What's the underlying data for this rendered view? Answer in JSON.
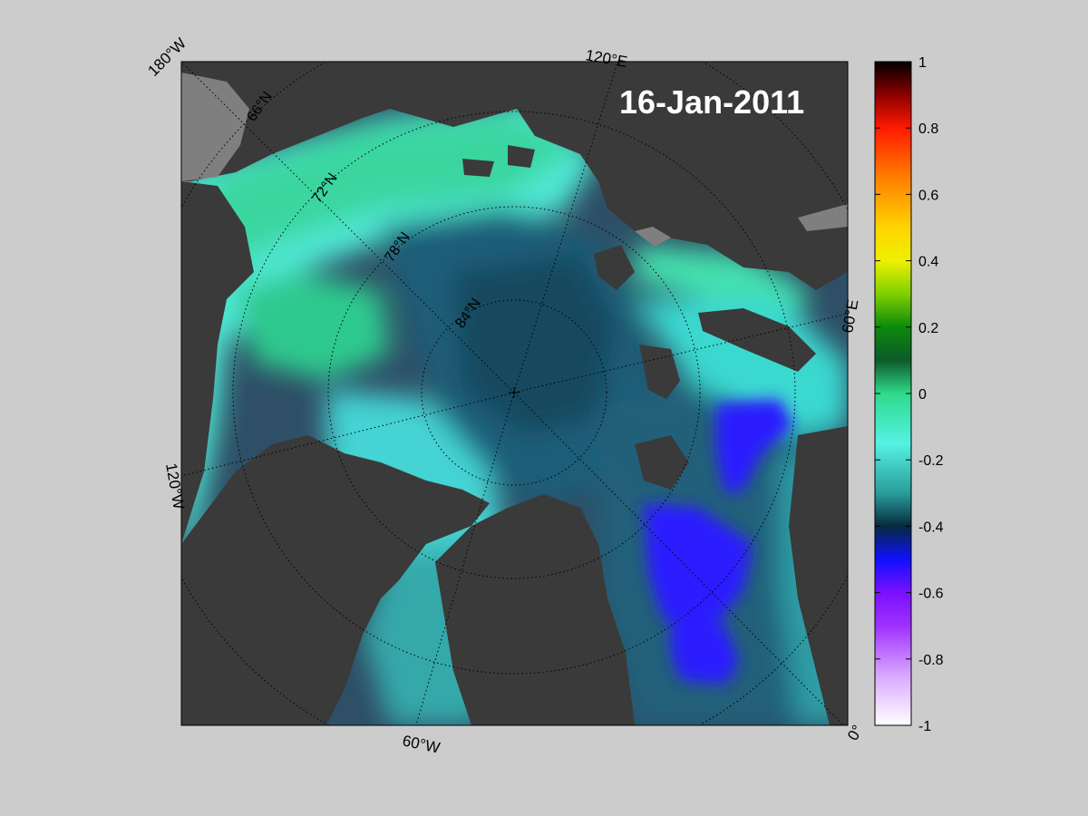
{
  "map": {
    "date": "16-Jan-2011",
    "meridian_labels": [
      "180°W",
      "120°E",
      "60°E",
      "0°",
      "60°W",
      "120°W"
    ],
    "parallel_labels": [
      "66°N",
      "72°N",
      "78°N",
      "84°N"
    ],
    "colors": {
      "background": "#cccccc",
      "land": "#3a3a3a",
      "coast_grey": "#7f7f7f",
      "graticule": "#000000"
    }
  },
  "colorbar": {
    "ticks": [
      "1",
      "0.8",
      "0.6",
      "0.4",
      "0.2",
      "0",
      "-0.2",
      "-0.4",
      "-0.6",
      "-0.8",
      "-1"
    ],
    "range": [
      -1,
      1
    ],
    "stops": [
      {
        "value": 1.0,
        "color": "#000000"
      },
      {
        "value": 0.9,
        "color": "#8b0000"
      },
      {
        "value": 0.8,
        "color": "#ff1a00"
      },
      {
        "value": 0.65,
        "color": "#ff7f00"
      },
      {
        "value": 0.5,
        "color": "#ffd400"
      },
      {
        "value": 0.4,
        "color": "#eef000"
      },
      {
        "value": 0.3,
        "color": "#7fd000"
      },
      {
        "value": 0.2,
        "color": "#0b8a0b"
      },
      {
        "value": 0.1,
        "color": "#0d5a2a"
      },
      {
        "value": 0.0,
        "color": "#2fd98a"
      },
      {
        "value": -0.15,
        "color": "#55f2e4"
      },
      {
        "value": -0.3,
        "color": "#2a9d9a"
      },
      {
        "value": -0.4,
        "color": "#062a3e"
      },
      {
        "value": -0.5,
        "color": "#1010ff"
      },
      {
        "value": -0.6,
        "color": "#7a10ff"
      },
      {
        "value": -0.7,
        "color": "#a030ff"
      },
      {
        "value": -0.85,
        "color": "#d8a8ff"
      },
      {
        "value": -1.0,
        "color": "#ffffff"
      }
    ]
  }
}
